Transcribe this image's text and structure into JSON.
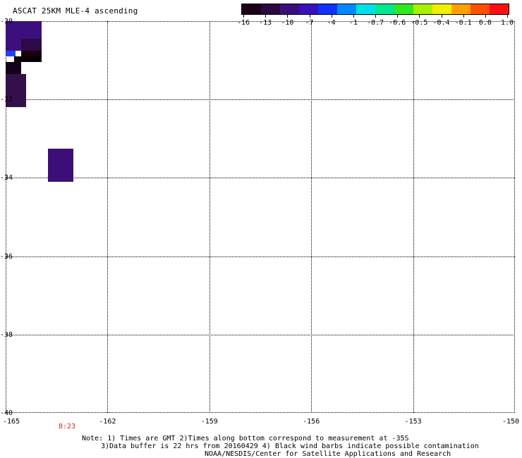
{
  "title": "ASCAT 25KM MLE-4 ascending",
  "colorbar": {
    "labels": [
      "-16",
      "-13",
      "-10",
      "-7",
      "-4",
      "-1",
      "-0.7",
      "-0.6",
      "-0.5",
      "-0.4",
      "-0.1",
      "0.0",
      "1.0"
    ],
    "colors": [
      "#1a0014",
      "#2c0840",
      "#3c0f78",
      "#3a10b8",
      "#1030ff",
      "#0088ff",
      "#00e0e8",
      "#00e890",
      "#30e820",
      "#a8f000",
      "#f0f000",
      "#ffa000",
      "#ff5000",
      "#ff1010"
    ]
  },
  "map": {
    "lat_labels": [
      "-30",
      "-32",
      "-34",
      "-36",
      "-38",
      "-40"
    ],
    "lon_labels": [
      "-165",
      "-162",
      "-159",
      "-156",
      "-153",
      "-150"
    ],
    "time_label": "8:23"
  },
  "cells": [
    {
      "lon": -165.0,
      "lat": -30.0,
      "dlon": 1.05,
      "dlat": 0.75,
      "color": "#3d0f7d"
    },
    {
      "lon": -164.55,
      "lat": -30.45,
      "dlon": 0.6,
      "dlat": 0.3,
      "color": "#2c0a48"
    },
    {
      "lon": -164.55,
      "lat": -30.75,
      "dlon": 0.6,
      "dlat": 0.3,
      "color": "#1a0010"
    },
    {
      "lon": -165.0,
      "lat": -30.75,
      "dlon": 0.3,
      "dlat": 0.15,
      "color": "#2040ff"
    },
    {
      "lon": -164.75,
      "lat": -30.9,
      "dlon": 0.8,
      "dlat": 0.15,
      "color": "#050008"
    },
    {
      "lon": -165.0,
      "lat": -31.05,
      "dlon": 0.45,
      "dlat": 0.3,
      "color": "#140018"
    },
    {
      "lon": -165.0,
      "lat": -31.35,
      "dlon": 0.6,
      "dlat": 0.85,
      "color": "#33104a"
    },
    {
      "lon": -163.75,
      "lat": -33.25,
      "dlon": 0.75,
      "dlat": 0.85,
      "color": "#3c0f78"
    }
  ],
  "notes": [
    "Note: 1) Times are GMT 2)Times along bottom correspond to measurement at -35S",
    "3)Data buffer is 22 hrs from 20160429 4) Black wind barbs indicate possible contamination",
    "NOAA/NESDIS/Center for Satellite Applications and Research"
  ]
}
